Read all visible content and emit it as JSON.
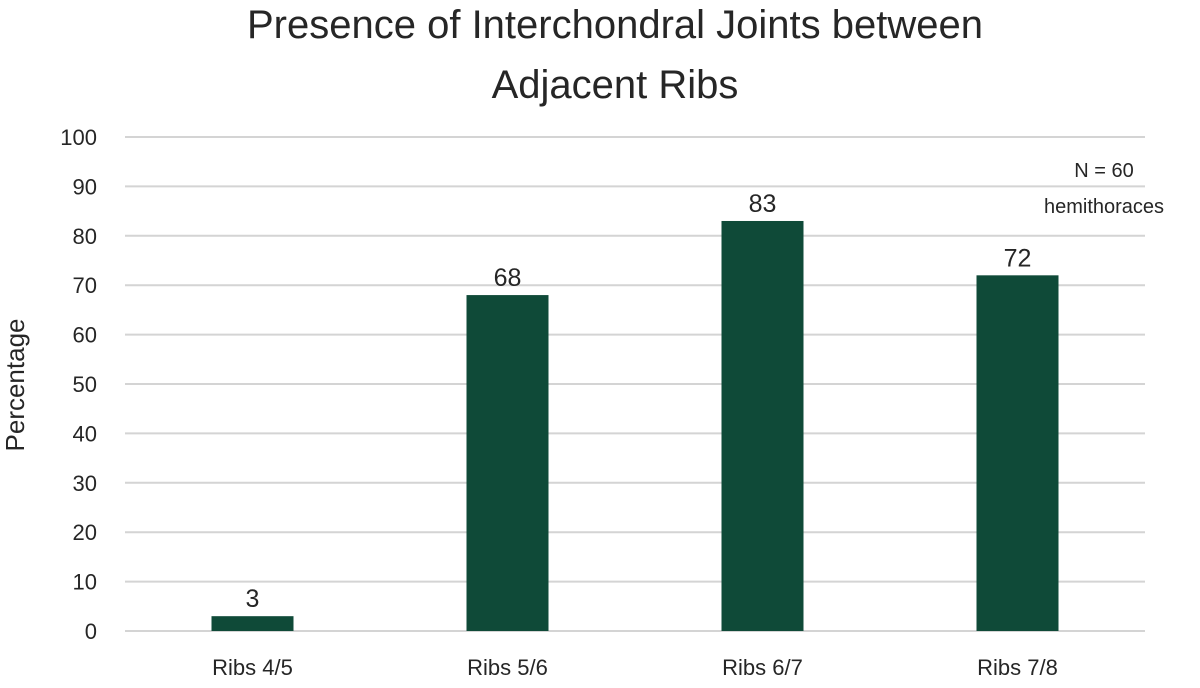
{
  "chart_data": {
    "type": "bar",
    "title": [
      "Presence of Interchondral Joints between",
      "Adjacent Ribs"
    ],
    "categories": [
      "Ribs 4/5",
      "Ribs 5/6",
      "Ribs 6/7",
      "Ribs 7/8"
    ],
    "values": [
      3,
      68,
      83,
      72
    ],
    "data_labels": [
      "3",
      "68",
      "83",
      "72"
    ],
    "xlabel": "",
    "ylabel": "Percentage",
    "ylim": [
      0,
      100
    ],
    "yticks": [
      "0",
      "10",
      "20",
      "30",
      "40",
      "50",
      "60",
      "70",
      "80",
      "90",
      "100"
    ],
    "grid": true,
    "legend": "none",
    "annotation": [
      "N = 60",
      "hemithoraces"
    ],
    "bar_color": "#0f4a38"
  }
}
